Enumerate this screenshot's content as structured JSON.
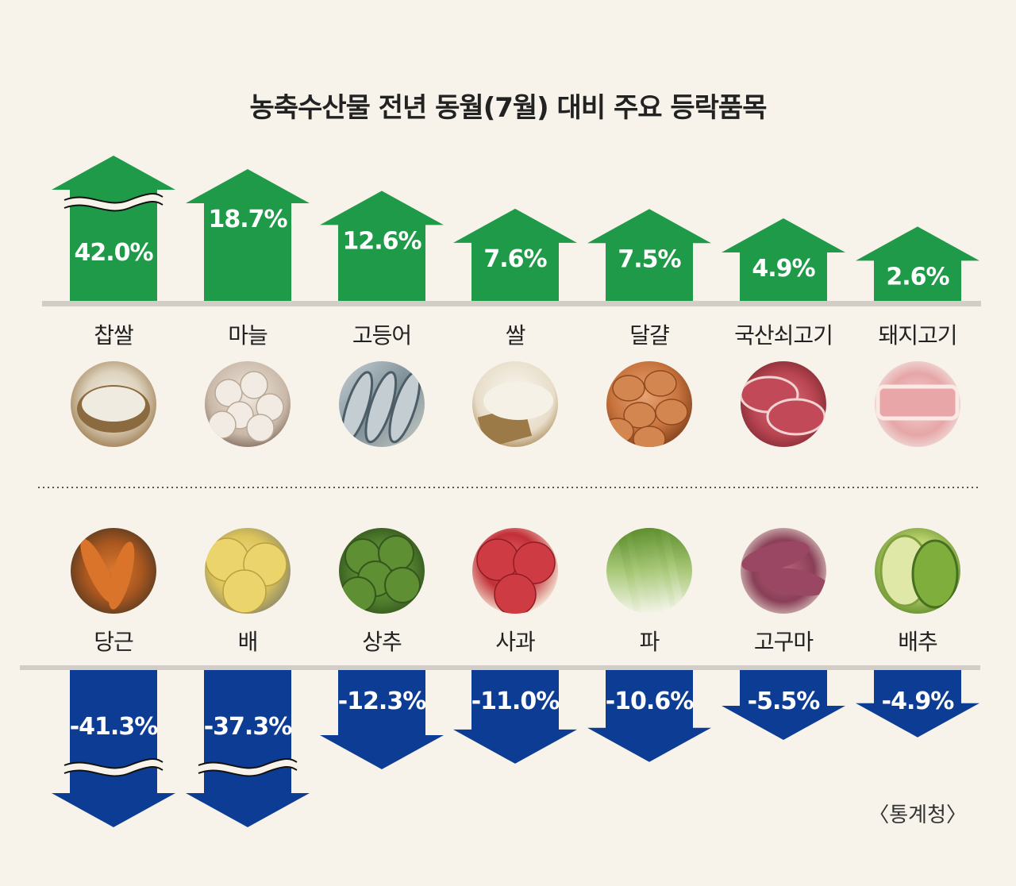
{
  "title": "농축수산물 전년 동월(7월) 대비 주요 등락품목",
  "source": "〈통계청〉",
  "colors": {
    "up": "#1f9a48",
    "down": "#0d3c94",
    "background": "#f7f3ea",
    "baseline": "#d2cec7"
  },
  "chart_data": [
    {
      "type": "bar",
      "title": "",
      "categories": [
        "찹쌀",
        "마늘",
        "고등어",
        "쌀",
        "달걀",
        "국산쇠고기",
        "돼지고기"
      ],
      "values": [
        42.0,
        18.7,
        12.6,
        7.6,
        7.5,
        4.9,
        2.6
      ],
      "labels": [
        "42.0%",
        "18.7%",
        "12.6%",
        "7.6%",
        "7.5%",
        "4.9%",
        "2.6%"
      ],
      "unit": "%",
      "axis_break": [
        true,
        false,
        false,
        false,
        false,
        false,
        false
      ],
      "icons": [
        "glutinous-rice-photo",
        "garlic-photo",
        "mackerel-photo",
        "rice-photo",
        "eggs-photo",
        "korean-beef-photo",
        "pork-photo"
      ]
    },
    {
      "type": "bar",
      "title": "",
      "categories": [
        "당근",
        "배",
        "상추",
        "사과",
        "파",
        "고구마",
        "배추"
      ],
      "values": [
        -41.3,
        -37.3,
        -12.3,
        -11.0,
        -10.6,
        -5.5,
        -4.9
      ],
      "labels": [
        "-41.3%",
        "-37.3%",
        "-12.3%",
        "-11.0%",
        "-10.6%",
        "-5.5%",
        "-4.9%"
      ],
      "unit": "%",
      "axis_break": [
        true,
        true,
        false,
        false,
        false,
        false,
        false
      ],
      "icons": [
        "carrot-photo",
        "pear-photo",
        "lettuce-photo",
        "apple-photo",
        "green-onion-photo",
        "sweet-potato-photo",
        "napa-cabbage-photo"
      ]
    }
  ]
}
